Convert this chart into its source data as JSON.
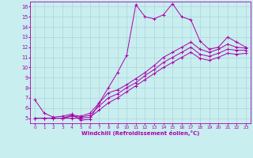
{
  "xlabel": "Windchill (Refroidissement éolien,°C)",
  "xlim": [
    -0.5,
    23.5
  ],
  "ylim": [
    4.5,
    16.5
  ],
  "xticks": [
    0,
    1,
    2,
    3,
    4,
    5,
    6,
    7,
    8,
    9,
    10,
    11,
    12,
    13,
    14,
    15,
    16,
    17,
    18,
    19,
    20,
    21,
    22,
    23
  ],
  "yticks": [
    5,
    6,
    7,
    8,
    9,
    10,
    11,
    12,
    13,
    14,
    15,
    16
  ],
  "bg_color": "#c8eef0",
  "line_color": "#aa00aa",
  "grid_color": "#b0d4d8",
  "line1_x": [
    0,
    1,
    2,
    3,
    4,
    5,
    6,
    7,
    8,
    9,
    10,
    11,
    12,
    13,
    14,
    15,
    16,
    17,
    18,
    19,
    20,
    21,
    22,
    23
  ],
  "line1_y": [
    6.8,
    5.5,
    5.1,
    5.2,
    5.4,
    4.8,
    4.9,
    6.5,
    8.0,
    9.5,
    11.2,
    16.2,
    15.0,
    14.8,
    15.2,
    16.3,
    15.0,
    14.7,
    12.6,
    11.8,
    12.0,
    13.0,
    12.5,
    12.0
  ],
  "line2_x": [
    0,
    1,
    2,
    3,
    4,
    5,
    6,
    7,
    8,
    9,
    10,
    11,
    12,
    13,
    14,
    15,
    16,
    17,
    18,
    19,
    20,
    21,
    22,
    23
  ],
  "line2_y": [
    5.0,
    5.0,
    5.0,
    5.0,
    5.3,
    5.2,
    5.5,
    6.5,
    7.5,
    7.8,
    8.3,
    8.9,
    9.5,
    10.2,
    11.0,
    11.5,
    12.0,
    12.5,
    11.8,
    11.5,
    11.8,
    12.3,
    12.0,
    11.9
  ],
  "line3_x": [
    0,
    1,
    2,
    3,
    4,
    5,
    6,
    7,
    8,
    9,
    10,
    11,
    12,
    13,
    14,
    15,
    16,
    17,
    18,
    19,
    20,
    21,
    22,
    23
  ],
  "line3_y": [
    5.0,
    5.0,
    5.0,
    5.0,
    5.2,
    5.1,
    5.3,
    6.2,
    7.0,
    7.4,
    8.0,
    8.5,
    9.2,
    9.8,
    10.5,
    11.0,
    11.5,
    12.0,
    11.3,
    11.1,
    11.4,
    11.8,
    11.7,
    11.7
  ],
  "line4_x": [
    0,
    1,
    2,
    3,
    4,
    5,
    6,
    7,
    8,
    9,
    10,
    11,
    12,
    13,
    14,
    15,
    16,
    17,
    18,
    19,
    20,
    21,
    22,
    23
  ],
  "line4_y": [
    5.0,
    5.0,
    5.0,
    5.0,
    5.0,
    5.0,
    5.1,
    5.8,
    6.5,
    7.0,
    7.6,
    8.2,
    8.8,
    9.4,
    10.0,
    10.5,
    11.0,
    11.5,
    10.9,
    10.7,
    11.0,
    11.4,
    11.3,
    11.4
  ]
}
